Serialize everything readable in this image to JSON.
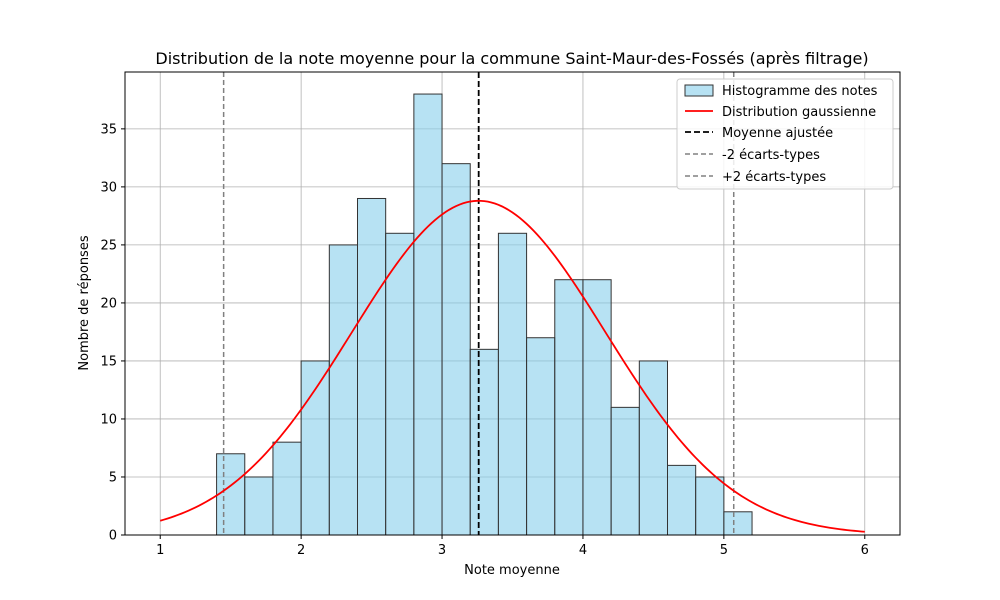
{
  "chart_data": {
    "type": "bar",
    "title": "Distribution de la note moyenne pour la commune Saint-Maur-des-Fossés (après filtrage)",
    "xlabel": "Note moyenne",
    "ylabel": "Nombre de réponses",
    "xlim": [
      0.75,
      6.25
    ],
    "ylim": [
      0,
      39.9
    ],
    "xticks": [
      1,
      2,
      3,
      4,
      5,
      6
    ],
    "yticks": [
      0,
      5,
      10,
      15,
      20,
      25,
      30,
      35
    ],
    "grid": true,
    "legend_position": "top-right",
    "histogram": {
      "name": "Histogramme des notes",
      "color": "#87CEEB",
      "edgecolor": "#333333",
      "bin_edges": [
        1.4,
        1.6,
        1.8,
        2.0,
        2.2,
        2.4,
        2.6,
        2.8,
        3.0,
        3.2,
        3.4,
        3.6,
        3.8,
        4.0,
        4.2,
        4.4,
        4.6,
        4.8,
        5.0,
        5.2
      ],
      "counts": [
        7,
        5,
        8,
        15,
        25,
        29,
        26,
        38,
        32,
        16,
        26,
        17,
        22,
        22,
        11,
        15,
        6,
        5,
        2
      ]
    },
    "gaussian": {
      "name": "Distribution gaussienne",
      "color": "#ff0000",
      "mean": 3.26,
      "std": 0.9,
      "peak": 28.8,
      "x_range": [
        1,
        6
      ]
    },
    "mean_line": {
      "name": "Moyenne ajustée",
      "x": 3.26,
      "color": "#000000"
    },
    "minus2sd_line": {
      "name": "-2 écarts-types",
      "x": 1.45,
      "color": "#808080"
    },
    "plus2sd_line": {
      "name": "+2 écarts-types",
      "x": 5.07,
      "color": "#808080"
    }
  }
}
